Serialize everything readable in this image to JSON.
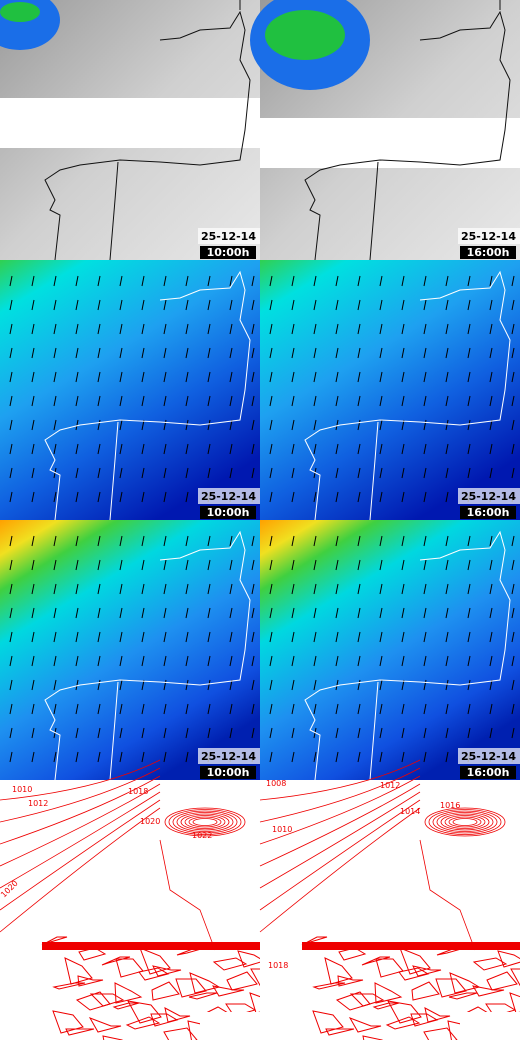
{
  "rows": [
    {
      "panels": [
        {
          "date": "25-12-14",
          "time": "10:00h"
        },
        {
          "date": "25-12-14",
          "time": "16:00h"
        }
      ]
    },
    {
      "panels": [
        {
          "date": "25-12-14",
          "time": "10:00h"
        },
        {
          "date": "25-12-14",
          "time": "16:00h"
        }
      ]
    },
    {
      "panels": [
        {
          "date": "25-12-14",
          "time": "10:00h"
        },
        {
          "date": "25-12-14",
          "time": "16:00h"
        }
      ]
    },
    {
      "panels": [
        {
          "isobar_labels": [
            "1010",
            "1012",
            "1018",
            "1020",
            "1022",
            "1020"
          ]
        },
        {
          "isobar_labels": [
            "1008",
            "1012",
            "1010",
            "1014",
            "1016",
            "1018"
          ]
        }
      ]
    }
  ]
}
